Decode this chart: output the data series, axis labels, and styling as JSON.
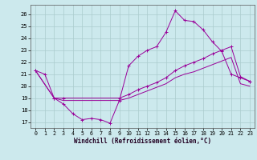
{
  "xlabel": "Windchill (Refroidissement éolien,°C)",
  "background_color": "#cce9ed",
  "grid_color": "#aacccc",
  "line_color": "#990099",
  "xlim": [
    -0.5,
    23.5
  ],
  "ylim": [
    16.5,
    26.8
  ],
  "yticks": [
    17,
    18,
    19,
    20,
    21,
    22,
    23,
    24,
    25,
    26
  ],
  "xticks": [
    0,
    1,
    2,
    3,
    4,
    5,
    6,
    7,
    8,
    9,
    10,
    11,
    12,
    13,
    14,
    15,
    16,
    17,
    18,
    19,
    20,
    21,
    22,
    23
  ],
  "line1_x": [
    0,
    1,
    2,
    3,
    4,
    5,
    6,
    7,
    8,
    9,
    10,
    11,
    12,
    13,
    14,
    15,
    16,
    17,
    18,
    19,
    20,
    21,
    22,
    23
  ],
  "line1_y": [
    21.3,
    21.0,
    19.0,
    18.5,
    17.7,
    17.2,
    17.3,
    17.2,
    16.9,
    18.8,
    21.7,
    22.5,
    23.0,
    23.3,
    24.5,
    26.3,
    25.5,
    25.4,
    24.7,
    23.7,
    22.9,
    21.0,
    20.7,
    20.4
  ],
  "line2_x": [
    0,
    2,
    3,
    9,
    10,
    11,
    12,
    13,
    14,
    15,
    16,
    17,
    18,
    19,
    20,
    21,
    22,
    23
  ],
  "line2_y": [
    21.3,
    19.0,
    19.0,
    19.0,
    19.3,
    19.7,
    20.0,
    20.3,
    20.7,
    21.3,
    21.7,
    22.0,
    22.3,
    22.7,
    23.0,
    23.3,
    20.8,
    20.4
  ],
  "line3_x": [
    0,
    2,
    3,
    9,
    10,
    11,
    12,
    13,
    14,
    15,
    16,
    17,
    18,
    19,
    20,
    21,
    22,
    23
  ],
  "line3_y": [
    21.3,
    19.0,
    18.8,
    18.8,
    19.0,
    19.3,
    19.6,
    19.9,
    20.2,
    20.7,
    21.0,
    21.2,
    21.5,
    21.8,
    22.1,
    22.4,
    20.2,
    20.0
  ]
}
